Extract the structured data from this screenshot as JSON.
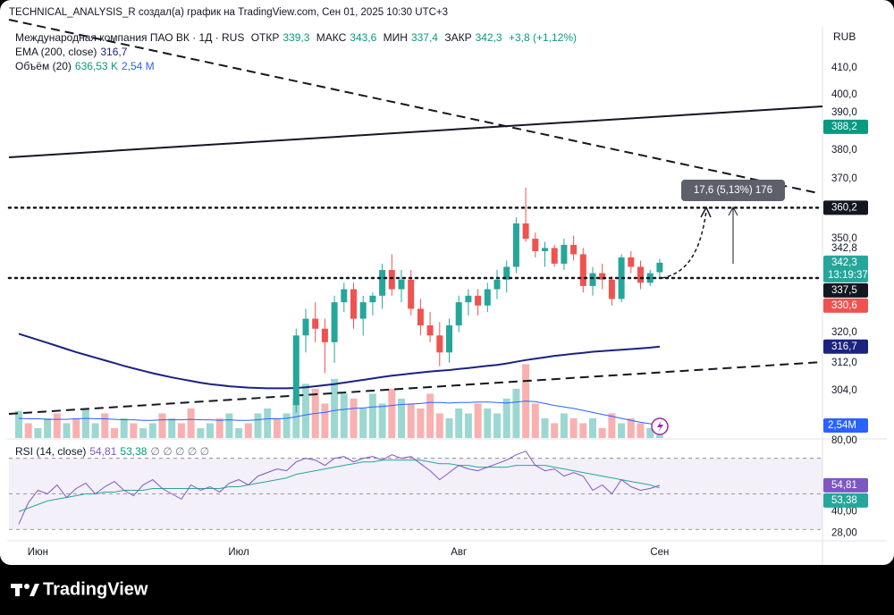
{
  "header": {
    "author_line": "TECHNICAL_ANALYSIS_R создал(а) график на TradingView.com, Сен 01, 2025 10:30 UTC+3"
  },
  "chart_data": {
    "type": "candlestick",
    "title": "Международная компания ПАО ВК · 1Д · RUS",
    "ohlc_legend": [
      {
        "label": "ОТКР",
        "value": "339,3"
      },
      {
        "label": "МАКС",
        "value": "343,6"
      },
      {
        "label": "МИН",
        "value": "337,4"
      },
      {
        "label": "ЗАКР",
        "value": "342,3"
      }
    ],
    "change": "+3,8 (+1,12%)",
    "currency": "RUB",
    "log": true,
    "categories": [
      null,
      null,
      "Июн",
      null,
      null,
      null,
      null,
      null,
      null,
      null,
      null,
      null,
      null,
      null,
      null,
      null,
      null,
      null,
      null,
      null,
      null,
      null,
      null,
      "Июл",
      null,
      null,
      null,
      null,
      null,
      null,
      null,
      null,
      null,
      null,
      null,
      null,
      null,
      null,
      null,
      null,
      null,
      null,
      null,
      null,
      null,
      null,
      "Авг",
      null,
      null,
      null,
      null,
      null,
      null,
      null,
      null,
      null,
      null,
      null,
      null,
      null,
      null,
      null,
      null,
      null,
      null,
      null,
      null,
      "Сен"
    ],
    "open": [
      null,
      null,
      null,
      null,
      null,
      null,
      null,
      null,
      null,
      null,
      null,
      null,
      null,
      null,
      null,
      null,
      null,
      null,
      null,
      null,
      null,
      null,
      null,
      null,
      null,
      null,
      null,
      null,
      null,
      300,
      320,
      325,
      322,
      318,
      330,
      334,
      325,
      330,
      332,
      340,
      334,
      337,
      328,
      323,
      320,
      315,
      323,
      330,
      332,
      329,
      334,
      337,
      341,
      355,
      350,
      346,
      347,
      342,
      348,
      345,
      335,
      339,
      337,
      331,
      344,
      341,
      336,
      339.3
    ],
    "high": [
      null,
      null,
      null,
      null,
      null,
      null,
      null,
      null,
      null,
      null,
      null,
      null,
      null,
      null,
      null,
      null,
      null,
      null,
      null,
      null,
      null,
      null,
      null,
      null,
      null,
      null,
      null,
      null,
      null,
      322,
      328,
      330,
      325,
      332,
      336,
      336,
      332,
      333,
      342,
      345,
      340,
      340,
      331,
      327,
      324,
      325,
      332,
      334,
      334,
      336,
      340,
      343,
      357,
      367,
      352,
      349,
      348,
      350,
      351,
      347,
      341,
      342,
      338,
      345,
      346,
      343,
      340,
      343.6
    ],
    "low": [
      null,
      null,
      null,
      null,
      null,
      null,
      null,
      null,
      null,
      null,
      null,
      null,
      null,
      null,
      null,
      null,
      null,
      null,
      null,
      null,
      null,
      null,
      null,
      null,
      null,
      null,
      null,
      null,
      null,
      298,
      315,
      318,
      309,
      312,
      327,
      322,
      320,
      326,
      328,
      332,
      330,
      326,
      320,
      318,
      311,
      312,
      321,
      326,
      326,
      327,
      331,
      333,
      339,
      349,
      344,
      341,
      341,
      340,
      343,
      333,
      332,
      334,
      329,
      330,
      339,
      334,
      335,
      337.4
    ],
    "close": [
      null,
      null,
      null,
      null,
      null,
      null,
      null,
      null,
      null,
      null,
      null,
      null,
      null,
      null,
      null,
      null,
      null,
      null,
      null,
      null,
      null,
      null,
      null,
      null,
      null,
      null,
      null,
      null,
      null,
      320,
      325,
      322,
      318,
      330,
      334,
      325,
      330,
      332,
      340,
      334,
      337,
      328,
      323,
      320,
      315,
      323,
      330,
      332,
      329,
      334,
      337,
      341,
      355,
      350,
      346,
      347,
      342,
      348,
      345,
      335,
      339,
      337,
      331,
      344,
      341,
      336,
      339,
      342.3
    ],
    "up_color": "#26a69a",
    "down_color": "#ef5350",
    "ylim": [
      291.0,
      425.9
    ],
    "yticks": [
      {
        "value": 410,
        "label": "410,0"
      },
      {
        "value": 400,
        "label": "400,0"
      },
      {
        "value": 390,
        "label": "390,0"
      },
      {
        "value": 380,
        "label": "380,0"
      },
      {
        "value": 370,
        "label": "370,0"
      },
      {
        "value": 350,
        "label": "350,0"
      },
      {
        "value": 342.8,
        "label": "342,8"
      },
      {
        "value": 320,
        "label": "320,0"
      },
      {
        "value": 312,
        "label": "312,0"
      },
      {
        "value": 304,
        "label": "304,0"
      }
    ],
    "ema": {
      "name": "EMA (200, close)",
      "value_label": "316,7",
      "color": "#1a237e",
      "values": [
        320.5,
        319.6,
        318.7,
        317.8,
        316.9,
        316.0,
        315.1,
        314.3,
        313.5,
        312.7,
        311.9,
        311.1,
        310.4,
        309.7,
        309.0,
        308.4,
        307.8,
        307.3,
        306.8,
        306.3,
        305.9,
        305.6,
        305.3,
        305.1,
        304.9,
        304.8,
        304.7,
        304.7,
        304.7,
        304.8,
        305.0,
        305.3,
        305.6,
        305.9,
        306.3,
        306.7,
        307.1,
        307.5,
        307.9,
        308.3,
        308.6,
        308.9,
        309.2,
        309.5,
        309.7,
        309.9,
        310.2,
        310.5,
        310.8,
        311.1,
        311.4,
        311.8,
        312.3,
        312.8,
        313.2,
        313.6,
        314.0,
        314.3,
        314.6,
        314.9,
        315.2,
        315.4,
        315.6,
        315.8,
        316.0,
        316.2,
        316.4,
        316.7
      ]
    },
    "price_labels": [
      {
        "value": 388.2,
        "label": "388,2",
        "color": "#089981"
      },
      {
        "value": 360.2,
        "label": "360,2",
        "color": "#131722",
        "line": "dotted"
      },
      {
        "value": 342.3,
        "label": "342,3",
        "color": "#26a69a",
        "countdown": "13:19:37"
      },
      {
        "value": 337.5,
        "label": "337,5",
        "color": "#131722",
        "line": "dotted"
      },
      {
        "value": 330.6,
        "label": "330,6",
        "color": "#ef5350"
      },
      {
        "value": 316.7,
        "label": "316,7",
        "color": "#1a237e"
      }
    ],
    "measure": {
      "label": "17,6 (5,13%) 176"
    },
    "volume": {
      "name": "Объём (20)",
      "value_label": "636,53 K",
      "ma_label": "2,54 M",
      "ma_axis_label": "2,54M",
      "ma_color": "#2962ff",
      "ylim": [
        0,
        16.7
      ],
      "values": [
        5.5,
        3,
        2,
        4,
        5,
        3,
        4,
        6,
        3,
        5,
        2,
        4,
        3,
        2,
        3,
        5,
        4,
        3,
        6,
        2,
        3,
        4,
        5,
        2,
        3,
        5,
        6,
        4,
        5,
        8,
        11,
        10,
        7,
        12,
        9,
        8,
        6,
        9,
        7,
        10,
        8,
        7,
        6,
        9,
        5,
        4,
        6,
        5,
        7,
        6,
        5,
        8,
        10,
        15,
        7,
        4,
        3,
        5,
        4,
        3,
        4,
        2,
        5,
        3,
        4,
        3,
        2,
        0.63653
      ],
      "colors": [
        "#26a69a",
        "#ef5350",
        "#26a69a",
        "#26a69a",
        "#ef5350",
        "#26a69a",
        "#ef5350",
        "#26a69a",
        "#26a69a",
        "#ef5350",
        "#ef5350",
        "#26a69a",
        "#ef5350",
        "#26a69a",
        "#26a69a",
        "#ef5350",
        "#26a69a",
        "#ef5350",
        "#ef5350",
        "#26a69a",
        "#26a69a",
        "#ef5350",
        "#26a69a",
        "#26a69a",
        "#ef5350",
        "#26a69a",
        "#26a69a",
        "#ef5350",
        "#26a69a",
        "#26a69a",
        "#26a69a",
        "#ef5350",
        "#ef5350",
        "#26a69a",
        "#26a69a",
        "#ef5350",
        "#26a69a",
        "#26a69a",
        "#26a69a",
        "#ef5350",
        "#26a69a",
        "#ef5350",
        "#ef5350",
        "#ef5350",
        "#ef5350",
        "#26a69a",
        "#26a69a",
        "#26a69a",
        "#ef5350",
        "#26a69a",
        "#26a69a",
        "#26a69a",
        "#26a69a",
        "#ef5350",
        "#ef5350",
        "#26a69a",
        "#ef5350",
        "#26a69a",
        "#ef5350",
        "#ef5350",
        "#26a69a",
        "#ef5350",
        "#ef5350",
        "#26a69a",
        "#ef5350",
        "#ef5350",
        "#26a69a",
        "#26a69a"
      ],
      "ma": [
        4.0,
        3.9,
        3.9,
        3.8,
        3.8,
        3.8,
        3.9,
        4.0,
        3.9,
        3.9,
        3.8,
        3.7,
        3.7,
        3.6,
        3.6,
        3.7,
        3.7,
        3.7,
        3.8,
        3.7,
        3.7,
        3.6,
        3.7,
        3.6,
        3.6,
        3.7,
        3.9,
        3.9,
        4.0,
        4.3,
        4.7,
        5.0,
        5.2,
        5.6,
        5.8,
        6.0,
        6.1,
        6.3,
        6.4,
        6.6,
        6.8,
        6.9,
        7.0,
        7.2,
        7.2,
        7.1,
        7.2,
        7.2,
        7.3,
        7.3,
        7.2,
        7.1,
        7.3,
        7.5,
        7.4,
        7.0,
        6.6,
        6.3,
        6.0,
        5.6,
        5.2,
        4.8,
        4.4,
        4.0,
        3.6,
        3.2,
        2.9,
        2.54
      ]
    },
    "rsi": {
      "name": "RSI (14, close)",
      "value_label": "54,81",
      "ma_value_label": "53,38",
      "inputs": "∅ ∅ ∅ ∅ ∅",
      "color": "#7e57c2",
      "ma_color": "#26a69a",
      "ylim": [
        23.6,
        80.4
      ],
      "yticks": [
        {
          "value": 80,
          "label": "80,00"
        },
        {
          "value": 40,
          "label": "40,00"
        },
        {
          "value": 28,
          "label": "28,00"
        }
      ],
      "bands": [
        70,
        50,
        30
      ],
      "values": [
        33,
        45,
        52,
        50,
        55,
        48,
        53,
        56,
        50,
        54,
        57,
        52,
        49,
        55,
        58,
        53,
        50,
        47,
        55,
        52,
        54,
        51,
        56,
        58,
        55,
        60,
        62,
        64,
        63,
        68,
        70,
        69,
        66,
        70,
        71,
        68,
        70,
        71,
        69,
        72,
        70,
        71,
        67,
        63,
        58,
        62,
        66,
        64,
        63,
        65,
        67,
        69,
        72,
        74,
        66,
        63,
        64,
        60,
        62,
        60,
        52,
        55,
        50,
        58,
        54,
        52,
        53,
        54.81
      ],
      "ma": [
        40,
        42,
        44,
        46,
        47,
        48,
        49,
        50,
        50,
        51,
        51,
        52,
        52,
        52,
        53,
        53,
        53,
        53,
        53,
        53,
        53,
        53,
        54,
        54,
        55,
        56,
        57,
        58,
        59,
        61,
        62,
        63,
        64,
        65,
        66,
        67,
        68,
        68,
        69,
        69,
        69,
        69,
        69,
        68,
        67,
        67,
        66,
        66,
        65,
        65,
        65,
        65,
        66,
        66,
        66,
        66,
        65,
        64,
        63,
        62,
        61,
        60,
        59,
        58,
        57,
        56,
        55,
        53.38
      ]
    }
  },
  "footer": {
    "logo": "TradingView"
  }
}
